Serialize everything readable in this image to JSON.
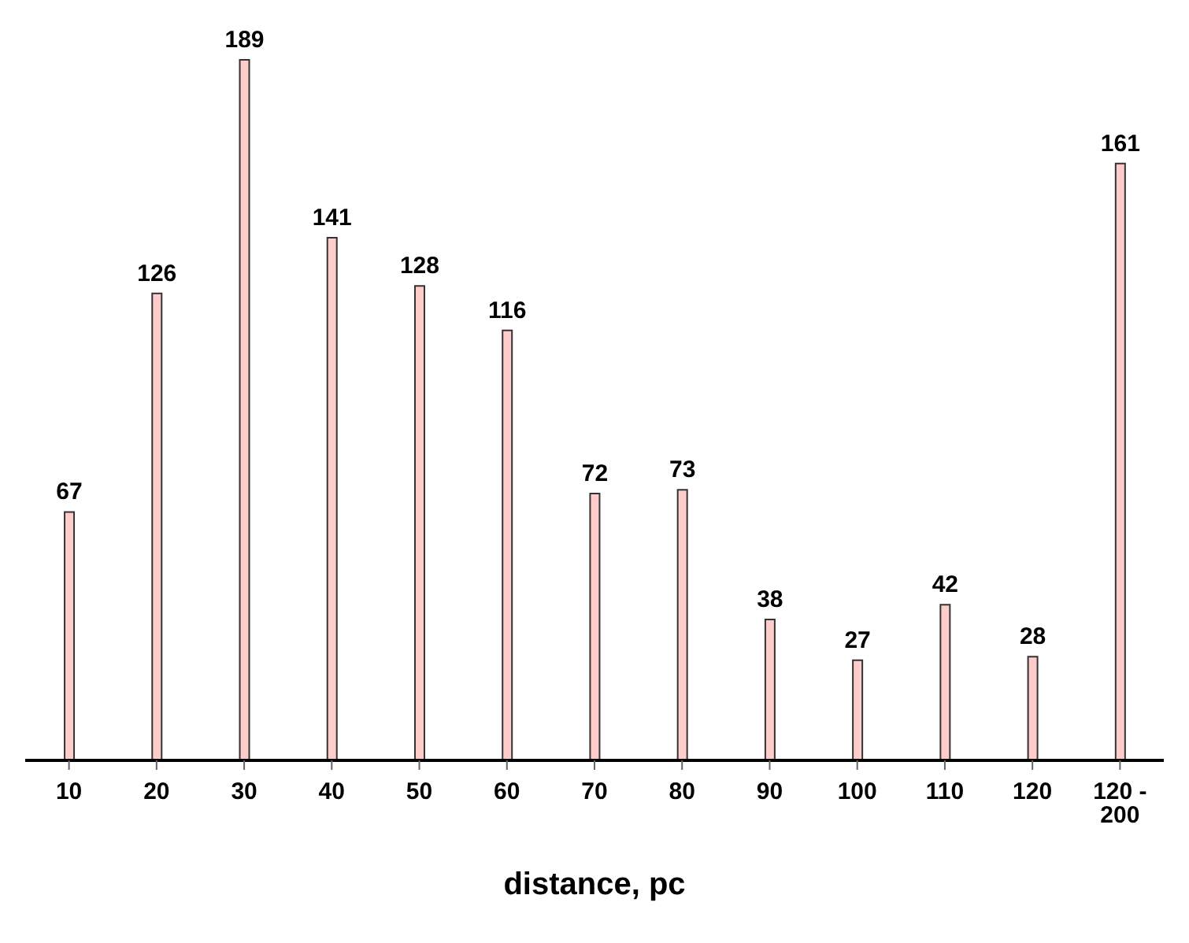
{
  "chart_data": {
    "type": "bar",
    "xlabel": "distance, pc",
    "categories": [
      "10",
      "20",
      "30",
      "40",
      "50",
      "60",
      "70",
      "80",
      "90",
      "100",
      "110",
      "120",
      "120 - 200"
    ],
    "values": [
      67,
      126,
      189,
      141,
      128,
      116,
      72,
      73,
      38,
      27,
      42,
      28,
      161
    ],
    "color": "#ffcccc",
    "data_labels": true
  }
}
